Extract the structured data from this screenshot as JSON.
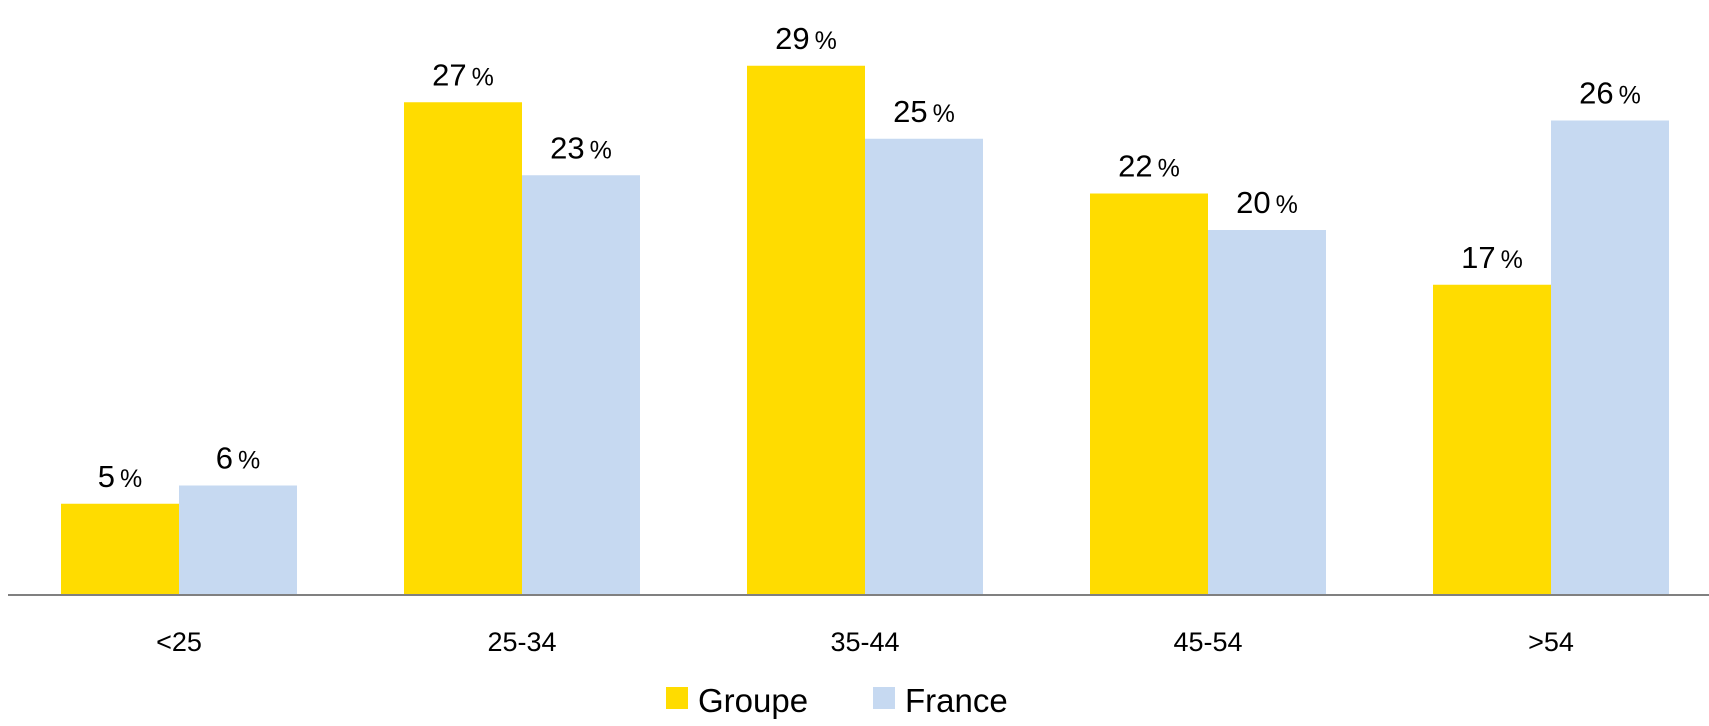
{
  "chart_data": {
    "type": "bar",
    "categories": [
      "<25",
      "25-34",
      "35-44",
      "45-54",
      ">54"
    ],
    "series": [
      {
        "name": "Groupe",
        "values": [
          5,
          27,
          29,
          22,
          17
        ],
        "color": "#FFDC00"
      },
      {
        "name": "France",
        "values": [
          6,
          23,
          25,
          20,
          26
        ],
        "color": "#C6D9F1"
      }
    ],
    "value_suffix": "%",
    "ylim": [
      0,
      32
    ],
    "grid": false,
    "legend_position": "bottom-center",
    "axis_color": "#808080"
  }
}
